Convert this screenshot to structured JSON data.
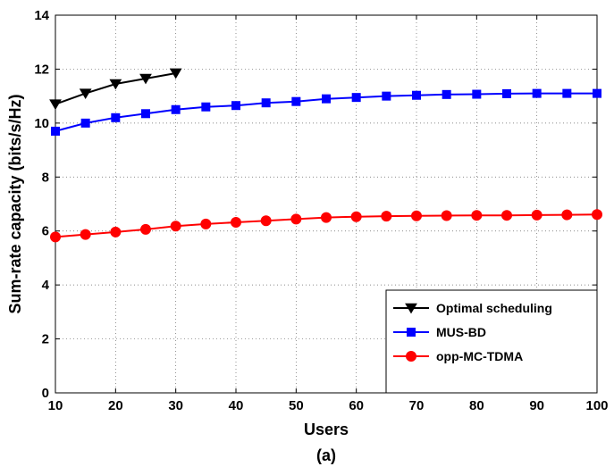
{
  "chart_data": {
    "type": "line",
    "xlabel": "Users",
    "ylabel": "Sum-rate capacity (bits/s/Hz)",
    "caption": "(a)",
    "xlim": [
      10,
      100
    ],
    "ylim": [
      0,
      14
    ],
    "xticks": [
      10,
      20,
      30,
      40,
      50,
      60,
      70,
      80,
      90,
      100
    ],
    "yticks": [
      0,
      2,
      4,
      6,
      8,
      10,
      12,
      14
    ],
    "grid": true,
    "legend_position": "bottom-right",
    "series": [
      {
        "name": "Optimal scheduling",
        "color": "#000000",
        "marker": "triangle-down",
        "x": [
          10,
          15,
          20,
          25,
          30
        ],
        "y": [
          10.7,
          11.1,
          11.45,
          11.65,
          11.85
        ]
      },
      {
        "name": "MUS-BD",
        "color": "#0000ff",
        "marker": "square",
        "x": [
          10,
          15,
          20,
          25,
          30,
          35,
          40,
          45,
          50,
          55,
          60,
          65,
          70,
          75,
          80,
          85,
          90,
          95,
          100
        ],
        "y": [
          9.7,
          10.0,
          10.2,
          10.35,
          10.5,
          10.6,
          10.65,
          10.75,
          10.8,
          10.9,
          10.95,
          11.0,
          11.03,
          11.06,
          11.07,
          11.09,
          11.1,
          11.1,
          11.1
        ]
      },
      {
        "name": "opp-MC-TDMA",
        "color": "#ff0000",
        "marker": "circle",
        "x": [
          10,
          15,
          20,
          25,
          30,
          35,
          40,
          45,
          50,
          55,
          60,
          65,
          70,
          75,
          80,
          85,
          90,
          95,
          100
        ],
        "y": [
          5.78,
          5.87,
          5.96,
          6.06,
          6.18,
          6.26,
          6.32,
          6.38,
          6.44,
          6.5,
          6.53,
          6.55,
          6.56,
          6.57,
          6.58,
          6.58,
          6.59,
          6.6,
          6.61
        ]
      }
    ]
  }
}
